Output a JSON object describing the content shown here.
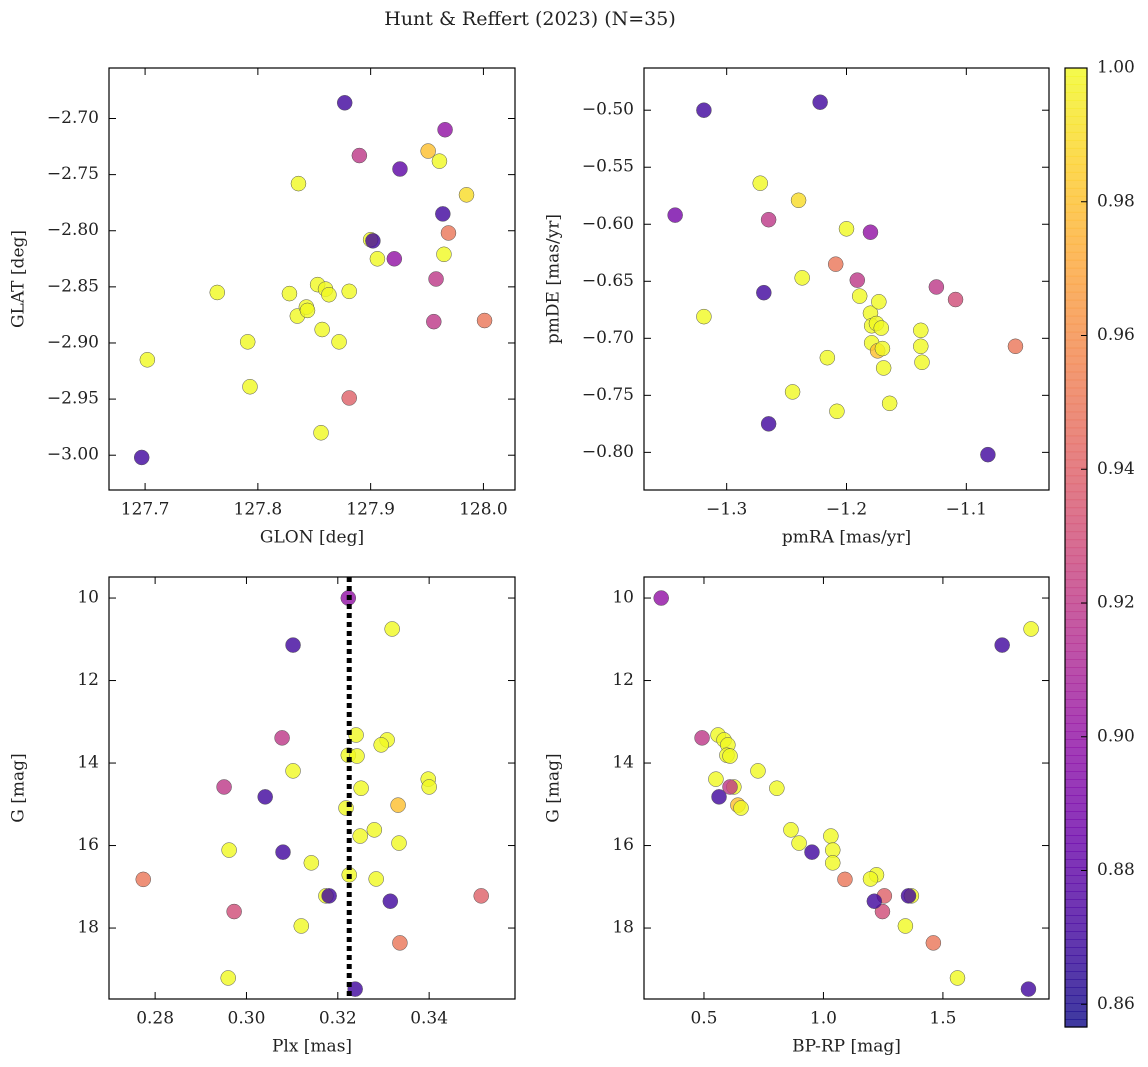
{
  "title": "Hunt & Reffert (2023) (N=35)",
  "colorbar": {
    "cmap": "plasma",
    "clim": [
      0.8566,
      1.0
    ],
    "ticks": [
      0.86,
      0.88,
      {
        "value": 0.9,
        "label": "0.90"
      },
      0.92,
      0.94,
      0.96,
      0.98,
      {
        "value": 1,
        "label": "1.00"
      }
    ]
  },
  "chart_data": [
    {
      "type": "scatter",
      "xlabel": "GLON [deg]",
      "ylabel": "GLAT [deg]",
      "xlim": [
        127.668,
        128.028
      ],
      "ylim": [
        -3.031,
        -2.655
      ],
      "xticks": [
        127.7,
        127.8,
        127.9,
        {
          "value": 128,
          "label": "128.0"
        }
      ],
      "yticks": [
        {
          "value": -2.7,
          "label": "−2.70"
        },
        {
          "value": -2.75,
          "label": "−2.75"
        },
        {
          "value": -2.8,
          "label": "−2.80"
        },
        {
          "value": -2.85,
          "label": "−2.85"
        },
        {
          "value": -2.9,
          "label": "−2.90"
        },
        {
          "value": -2.95,
          "label": "−2.95"
        },
        {
          "value": -3,
          "label": "−3.00"
        }
      ],
      "x": [
        127.697,
        127.702,
        127.764,
        127.791,
        127.793,
        127.828,
        127.836,
        127.835,
        127.843,
        127.844,
        127.853,
        127.857,
        127.86,
        127.863,
        127.856,
        127.872,
        127.877,
        127.881,
        127.881,
        127.89,
        127.9,
        127.902,
        127.906,
        127.921,
        127.926,
        127.951,
        127.961,
        127.966,
        127.964,
        127.969,
        127.965,
        127.958,
        127.956,
        127.985,
        128.001
      ],
      "y": [
        -3.002,
        -2.915,
        -2.855,
        -2.899,
        -2.939,
        -2.856,
        -2.758,
        -2.876,
        -2.868,
        -2.871,
        -2.848,
        -2.888,
        -2.852,
        -2.857,
        -2.98,
        -2.899,
        -2.686,
        -2.854,
        -2.949,
        -2.733,
        -2.808,
        -2.809,
        -2.825,
        -2.825,
        -2.745,
        -2.729,
        -2.738,
        -2.71,
        -2.785,
        -2.802,
        -2.821,
        -2.843,
        -2.881,
        -2.768,
        -2.88
      ],
      "color_values": [
        0.87,
        1.0,
        1.0,
        1.0,
        1.0,
        1.0,
        1.0,
        1.0,
        1.0,
        1.0,
        1.0,
        1.0,
        1.0,
        1.0,
        1.0,
        1.0,
        0.87,
        1.0,
        0.94,
        0.92,
        1.0,
        0.87,
        1.0,
        0.9,
        0.88,
        0.98,
        1.0,
        0.9,
        0.87,
        0.95,
        1.0,
        0.92,
        0.92,
        0.99,
        0.95
      ]
    },
    {
      "type": "scatter",
      "xlabel": "pmRA [mas/yr]",
      "ylabel": "pmDE [mas/yr]",
      "xlim": [
        -1.369,
        -1.031
      ],
      "ylim": [
        -0.833,
        -0.463
      ],
      "xticks": [
        {
          "value": -1.3,
          "label": "−1.3"
        },
        {
          "value": -1.2,
          "label": "−1.2"
        },
        {
          "value": -1.1,
          "label": "−1.1"
        }
      ],
      "yticks": [
        {
          "value": -0.5,
          "label": "−0.50"
        },
        {
          "value": -0.55,
          "label": "−0.55"
        },
        {
          "value": -0.6,
          "label": "−0.60"
        },
        {
          "value": -0.65,
          "label": "−0.65"
        },
        {
          "value": -0.7,
          "label": "−0.70"
        },
        {
          "value": -0.75,
          "label": "−0.75"
        },
        {
          "value": -0.8,
          "label": "−0.80"
        }
      ],
      "x": [
        -1.343,
        -1.319,
        -1.319,
        -1.272,
        -1.269,
        -1.265,
        -1.265,
        -1.245,
        -1.24,
        -1.237,
        -1.222,
        -1.209,
        -1.216,
        -1.208,
        -1.2,
        -1.191,
        -1.189,
        -1.18,
        -1.18,
        -1.179,
        -1.179,
        -1.174,
        -1.173,
        -1.175,
        -1.171,
        -1.17,
        -1.169,
        -1.164,
        -1.138,
        -1.138,
        -1.137,
        -1.125,
        -1.109,
        -1.082,
        -1.059
      ],
      "y": [
        -0.592,
        -0.5,
        -0.681,
        -0.564,
        -0.66,
        -0.596,
        -0.775,
        -0.747,
        -0.579,
        -0.647,
        -0.493,
        -0.635,
        -0.717,
        -0.764,
        -0.604,
        -0.649,
        -0.663,
        -0.607,
        -0.678,
        -0.689,
        -0.704,
        -0.711,
        -0.668,
        -0.687,
        -0.691,
        -0.709,
        -0.726,
        -0.757,
        -0.693,
        -0.707,
        -0.721,
        -0.655,
        -0.666,
        -0.802,
        -0.707
      ],
      "color_values": [
        0.89,
        0.87,
        1.0,
        1.0,
        0.87,
        0.92,
        0.87,
        1.0,
        0.99,
        1.0,
        0.87,
        0.95,
        1.0,
        1.0,
        1.0,
        0.92,
        1.0,
        0.9,
        1.0,
        1.0,
        1.0,
        0.98,
        1.0,
        1.0,
        1.0,
        1.0,
        1.0,
        1.0,
        1.0,
        1.0,
        1.0,
        0.92,
        0.93,
        0.87,
        0.95
      ]
    },
    {
      "type": "scatter",
      "xlabel": "Plx [mas]",
      "ylabel": "G [mag]",
      "xlim": [
        0.2699,
        0.3588
      ],
      "ylim": [
        19.72,
        9.49
      ],
      "vline": 0.3225,
      "xticks": [
        0.28,
        {
          "value": 0.3,
          "label": "0.30"
        },
        0.32,
        0.34
      ],
      "yticks": [
        10,
        12,
        14,
        16,
        18
      ],
      "x": [
        0.3223,
        0.3319,
        0.3102,
        0.3078,
        0.324,
        0.3308,
        0.3295,
        0.3223,
        0.3242,
        0.3102,
        0.3398,
        0.34,
        0.2951,
        0.3251,
        0.3041,
        0.3332,
        0.3218,
        0.3249,
        0.328,
        0.3334,
        0.2962,
        0.308,
        0.3142,
        0.2774,
        0.3225,
        0.3284,
        0.2973,
        0.3174,
        0.3181,
        0.3514,
        0.3315,
        0.312,
        0.3336,
        0.296,
        0.3238
      ],
      "y": [
        10.0,
        10.75,
        11.14,
        13.39,
        13.32,
        13.44,
        13.56,
        13.81,
        13.83,
        14.19,
        14.39,
        14.58,
        14.58,
        14.61,
        14.82,
        15.02,
        15.09,
        15.77,
        15.62,
        15.94,
        16.11,
        16.16,
        16.42,
        16.82,
        16.71,
        16.81,
        17.6,
        17.22,
        17.22,
        17.22,
        17.35,
        17.95,
        18.36,
        19.21,
        19.48
      ],
      "color_values": [
        0.9,
        1.0,
        0.87,
        0.92,
        1.0,
        1.0,
        1.0,
        1.0,
        1.0,
        1.0,
        1.0,
        1.0,
        0.92,
        1.0,
        0.87,
        0.98,
        1.0,
        1.0,
        1.0,
        1.0,
        1.0,
        0.87,
        1.0,
        0.95,
        1.0,
        1.0,
        0.93,
        1.0,
        0.87,
        0.94,
        0.87,
        1.0,
        0.95,
        1.0,
        0.87
      ]
    },
    {
      "type": "scatter",
      "xlabel": "BP-RP [mag]",
      "ylabel": "G [mag]",
      "xlim": [
        0.249,
        1.944
      ],
      "ylim": [
        19.72,
        9.49
      ],
      "xticks": [
        0.5,
        {
          "value": 1,
          "label": "1.0"
        },
        1.5
      ],
      "yticks": [
        10,
        12,
        14,
        16,
        18
      ],
      "x": [
        0.321,
        1.869,
        1.748,
        0.492,
        0.559,
        0.584,
        0.6,
        0.596,
        0.609,
        0.726,
        0.55,
        0.625,
        0.609,
        0.805,
        0.563,
        0.642,
        0.655,
        1.031,
        0.864,
        0.898,
        1.039,
        0.952,
        1.039,
        1.09,
        1.222,
        1.197,
        1.247,
        1.368,
        1.356,
        1.255,
        1.213,
        1.343,
        1.46,
        1.561,
        1.858
      ],
      "y": [
        10.0,
        10.75,
        11.14,
        13.39,
        13.32,
        13.44,
        13.56,
        13.81,
        13.83,
        14.19,
        14.39,
        14.58,
        14.58,
        14.61,
        14.82,
        15.02,
        15.09,
        15.77,
        15.62,
        15.94,
        16.11,
        16.16,
        16.42,
        16.82,
        16.71,
        16.81,
        17.6,
        17.22,
        17.22,
        17.22,
        17.35,
        17.95,
        18.36,
        19.21,
        19.48
      ],
      "color_values": [
        0.9,
        1.0,
        0.87,
        0.92,
        1.0,
        1.0,
        1.0,
        1.0,
        1.0,
        1.0,
        1.0,
        1.0,
        0.92,
        1.0,
        0.87,
        0.98,
        1.0,
        1.0,
        1.0,
        1.0,
        1.0,
        0.87,
        1.0,
        0.95,
        1.0,
        1.0,
        0.93,
        1.0,
        0.87,
        0.94,
        0.87,
        1.0,
        0.95,
        1.0,
        0.87
      ]
    }
  ]
}
